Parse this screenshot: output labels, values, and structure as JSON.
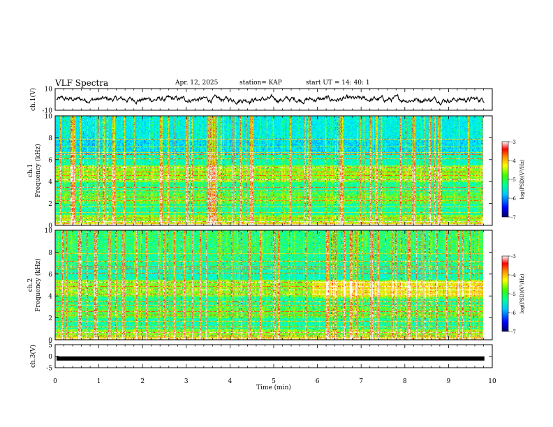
{
  "header": {
    "title": "VLF Spectra",
    "date": "Apr. 12, 2025",
    "station": "station= KAP",
    "start": "start  UT =   14: 40: 1"
  },
  "colors": {
    "colormap": [
      "#00008b",
      "#0000ff",
      "#00bfff",
      "#00ffff",
      "#00ff7f",
      "#7fff00",
      "#ffff00",
      "#ffa500",
      "#ff0000",
      "#ffffff"
    ]
  },
  "chart_data": [
    {
      "type": "line",
      "panel": "ch1-waveform",
      "ylabel": "ch.1(V)",
      "ylim": [
        -10,
        10
      ],
      "yticks": [
        "10",
        "-10"
      ],
      "xlim": [
        0,
        10
      ],
      "description_values": "continuous waveform oscillating roughly between -5 and +5 V"
    },
    {
      "type": "heatmap",
      "panel": "ch1-spectrogram",
      "ylabel": "Frequency (kHz)",
      "ylabel_prefix": "ch.1",
      "ylim": [
        0,
        10
      ],
      "yticks": [
        "0",
        "2",
        "4",
        "6",
        "8",
        "10"
      ],
      "xlim": [
        0,
        9.8
      ],
      "colorbar": {
        "label": "log(PSD)(V²/Hz)",
        "ticks": [
          "-3",
          "-4",
          "-5",
          "-6",
          "-7"
        ],
        "range": [
          -7,
          -3
        ]
      }
    },
    {
      "type": "heatmap",
      "panel": "ch2-spectrogram",
      "ylabel": "Frequency (kHz)",
      "ylabel_prefix": "ch.2",
      "ylim": [
        0,
        10
      ],
      "yticks": [
        "0",
        "2",
        "4",
        "6",
        "8",
        "10"
      ],
      "xlim": [
        0,
        9.8
      ],
      "colorbar": {
        "label": "log(PSD)(V²/Hz)",
        "ticks": [
          "-3",
          "-4",
          "-5",
          "-6",
          "-7"
        ],
        "range": [
          -7,
          -3
        ]
      }
    },
    {
      "type": "line",
      "panel": "ch3-waveform",
      "ylabel": "ch.3(V)",
      "ylim": [
        -5,
        5
      ],
      "yticks": [
        "5",
        "0",
        "-5"
      ],
      "xlim": [
        0,
        10
      ],
      "level": -1
    }
  ],
  "xaxis": {
    "label": "Time  (min)",
    "ticks": [
      "0",
      "1",
      "2",
      "3",
      "4",
      "5",
      "6",
      "7",
      "8",
      "9",
      "10"
    ]
  }
}
